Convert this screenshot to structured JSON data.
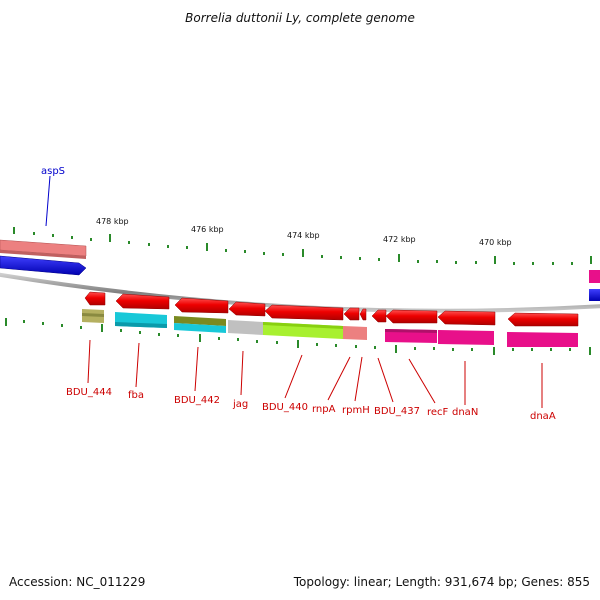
{
  "title": "Borrelia duttonii Ly, complete genome",
  "footer": {
    "accession": "Accession: NC_011229",
    "topology": "Topology: linear; Length: 931,674 bp; Genes: 855"
  },
  "scale_labels": [
    "478 kbp",
    "476 kbp",
    "474 kbp",
    "472 kbp",
    "470 kbp"
  ],
  "gene_labels": {
    "aspS": "aspS",
    "BDU_444": "BDU_444",
    "fba": "fba",
    "BDU_442": "BDU_442",
    "jag": "jag",
    "BDU_440": "BDU_440",
    "rnpA": "rnpA",
    "rpmH": "rpmH",
    "BDU_437": "BDU_437",
    "recF": "recF",
    "dnaN": "dnaN",
    "dnaA": "dnaA"
  },
  "colors": {
    "gene_arrow": "#ee0000",
    "label_red": "#cc0000",
    "label_blue": "#0000cc",
    "backbone": "#888888",
    "tick": "#2a8a2a"
  }
}
